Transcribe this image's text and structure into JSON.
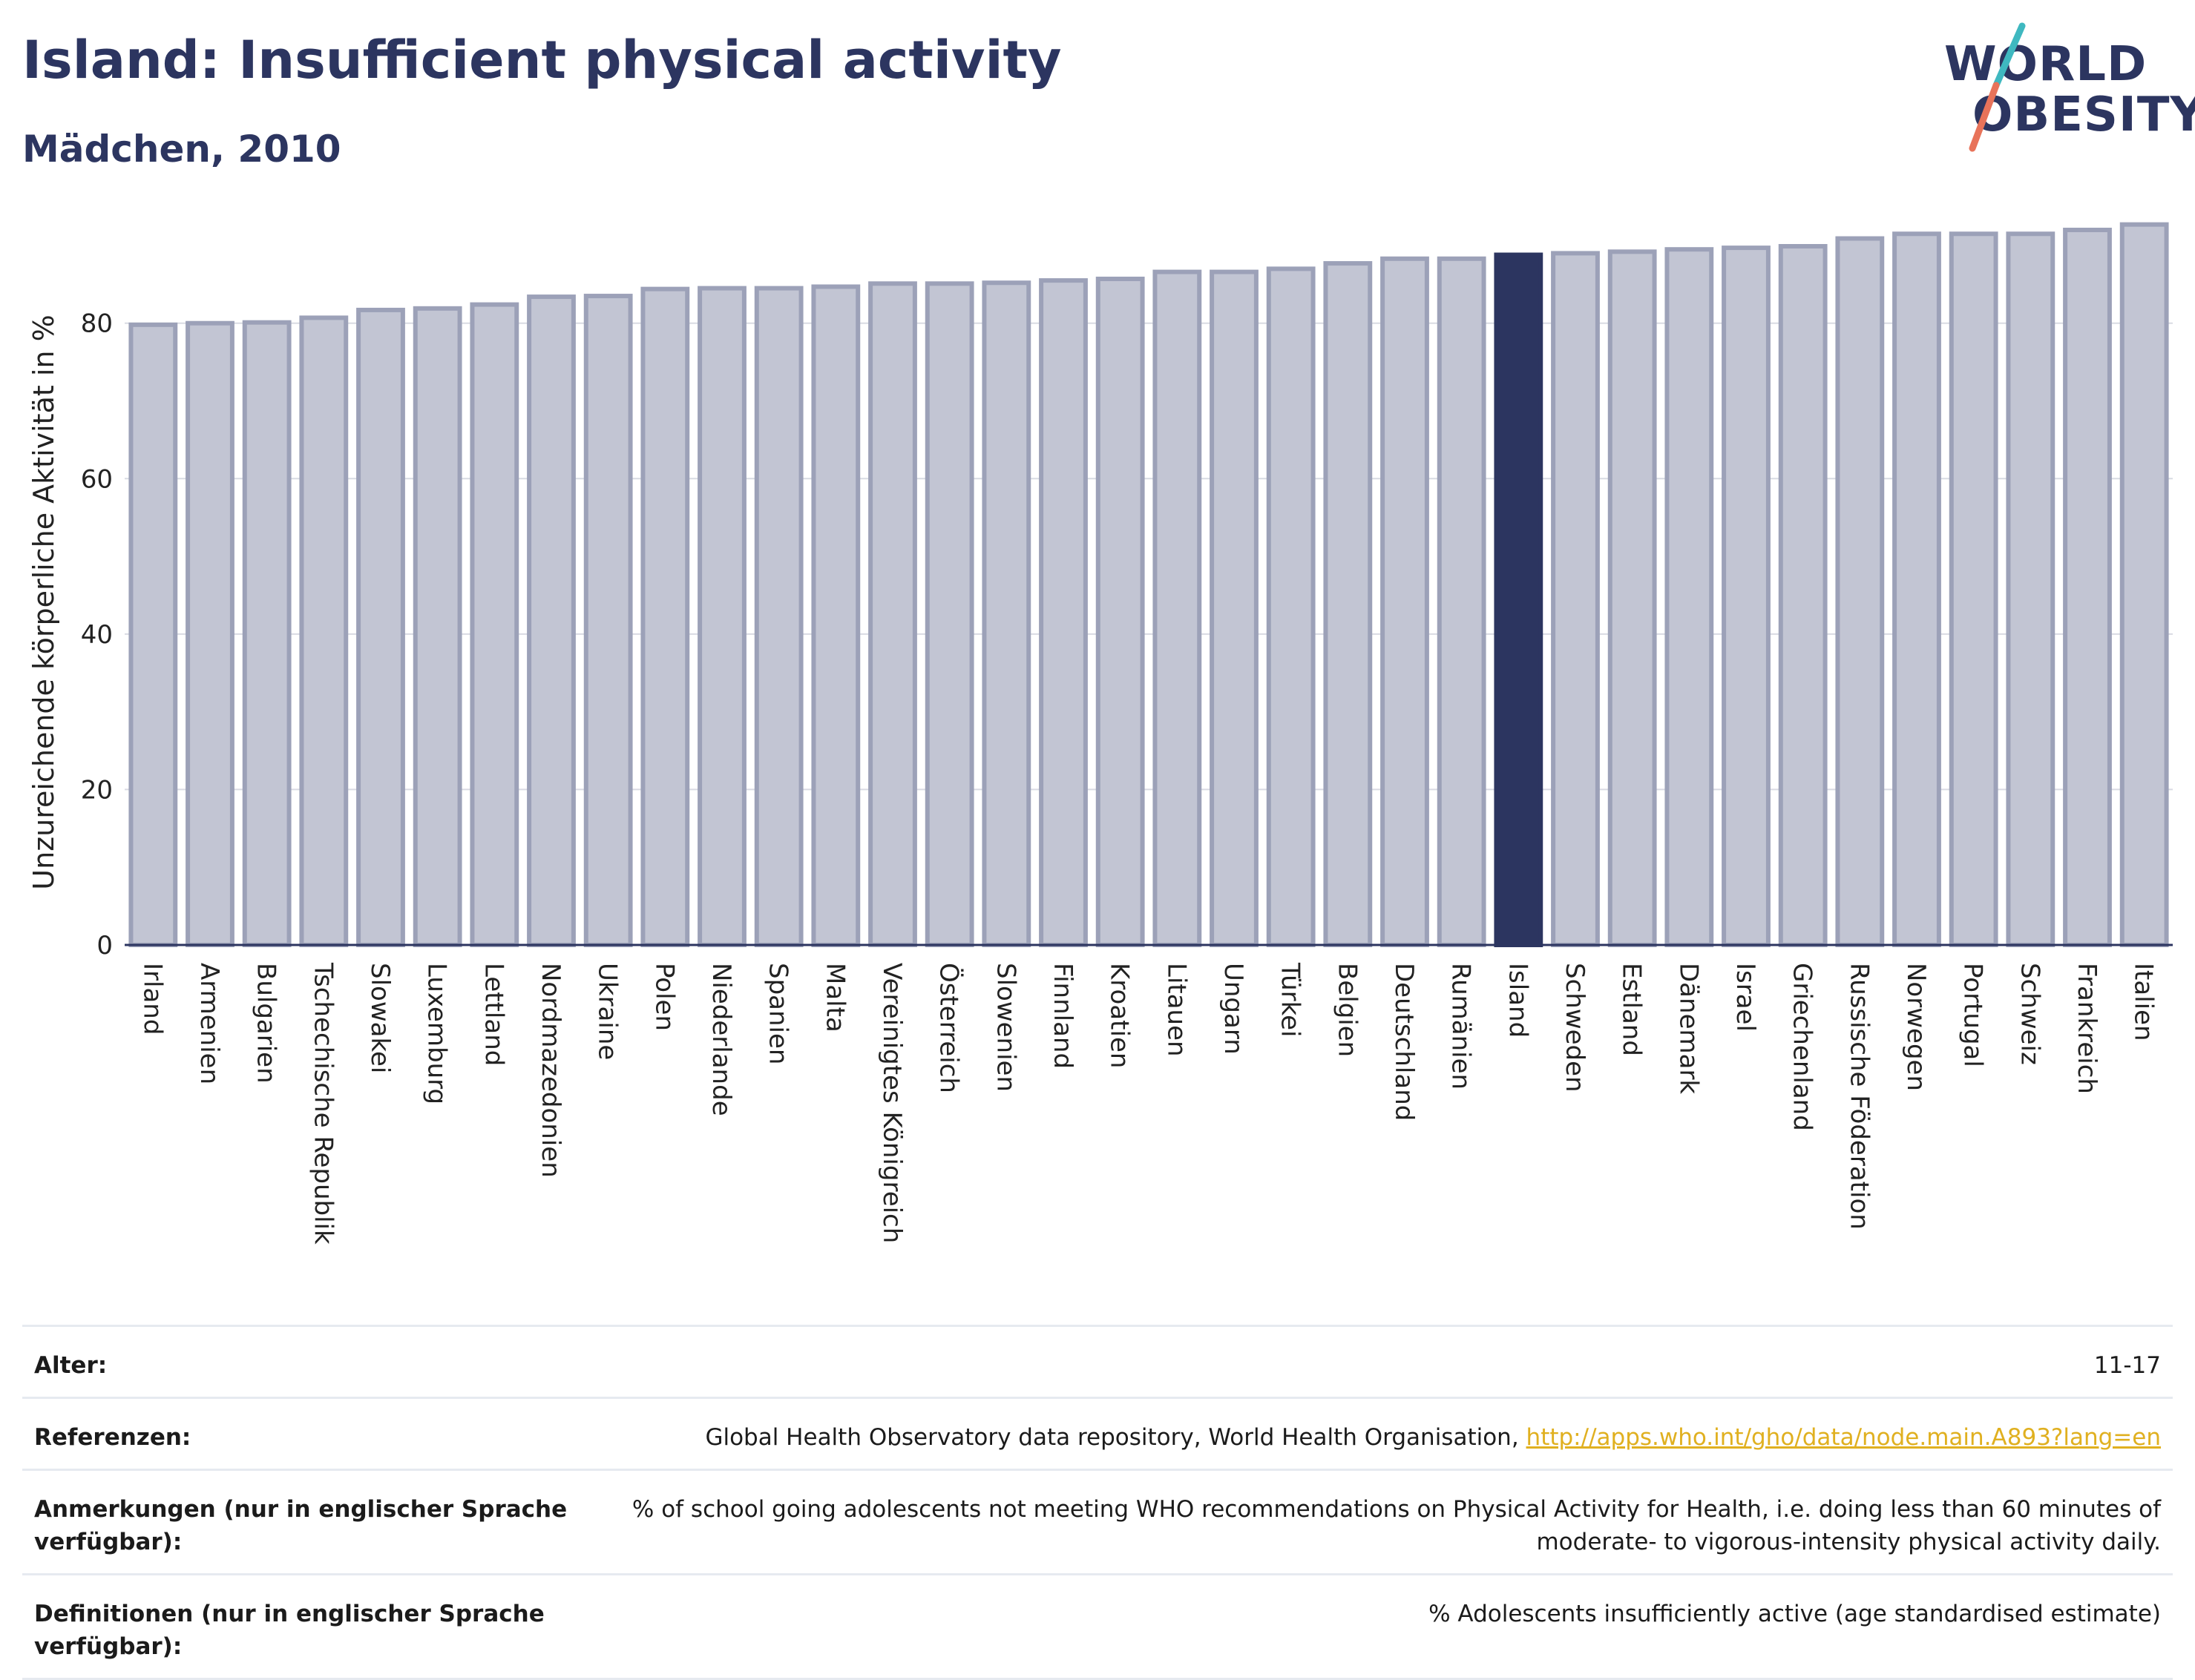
{
  "header": {
    "title": "Island: Insufficient physical activity",
    "subtitle": "Mädchen, 2010"
  },
  "logo": {
    "line1": "WORLD",
    "line2": "OBESITY",
    "colors": {
      "text": "#2c3560",
      "slash_top": "#3fb8c0",
      "slash_bottom": "#e8735a"
    }
  },
  "colors": {
    "bar_fill": "#c2c5d3",
    "bar_stroke": "#9ca1b8",
    "highlight": "#2c3560",
    "grid": "#d9dbe3",
    "link": "#e0b020"
  },
  "chart_data": {
    "type": "bar",
    "title": "Island: Insufficient physical activity",
    "subtitle": "Mädchen, 2010",
    "ylabel": "Unzureichende körperliche Aktivität in %",
    "xlabel": "",
    "ylim": [
      0,
      92
    ],
    "yticks": [
      0,
      20,
      40,
      60,
      80
    ],
    "grid": true,
    "highlight": "Island",
    "categories": [
      "Irland",
      "Armenien",
      "Bulgarien",
      "Tschechische Republik",
      "Slowakei",
      "Luxemburg",
      "Lettland",
      "Nordmazedonien",
      "Ukraine",
      "Polen",
      "Niederlande",
      "Spanien",
      "Malta",
      "Vereinigtes Königreich",
      "Österreich",
      "Slowenien",
      "Finnland",
      "Kroatien",
      "Litauen",
      "Ungarn",
      "Türkei",
      "Belgien",
      "Deutschland",
      "Rumänien",
      "Island",
      "Schweden",
      "Estland",
      "Dänemark",
      "Israel",
      "Griechenland",
      "Russische Föderation",
      "Norwegen",
      "Portugal",
      "Schweiz",
      "Frankreich",
      "Italien"
    ],
    "values": [
      79.8,
      80.0,
      80.1,
      80.7,
      81.7,
      81.9,
      82.4,
      83.4,
      83.5,
      84.4,
      84.5,
      84.5,
      84.7,
      85.1,
      85.1,
      85.2,
      85.5,
      85.7,
      86.6,
      86.6,
      87.0,
      87.7,
      88.3,
      88.3,
      88.8,
      89.0,
      89.2,
      89.5,
      89.7,
      89.9,
      90.9,
      91.5,
      91.5,
      91.5,
      92.0,
      92.7
    ]
  },
  "info_table": [
    {
      "key": "Alter:",
      "value": "11-17"
    },
    {
      "key": "Referenzen:",
      "value": "Global Health Observatory data repository, World Health Organisation, ",
      "link": "http://apps.who.int/gho/data/node.main.A893?lang=en"
    },
    {
      "key": "Anmerkungen (nur in englischer Sprache verfügbar):",
      "value": "% of school going adolescents not meeting WHO recommendations on Physical Activity for Health, i.e. doing less than 60 minutes of moderate- to vigorous-intensity physical activity daily."
    },
    {
      "key": "Definitionen (nur in englischer Sprache verfügbar):",
      "value": "% Adolescents insufficiently active (age standardised estimate)"
    }
  ]
}
